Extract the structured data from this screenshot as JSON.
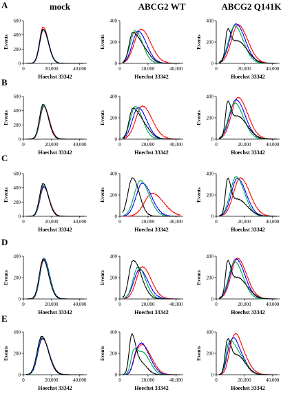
{
  "figure": {
    "column_titles": [
      "mock",
      "ABCG2 WT",
      "ABCG2 Q141K"
    ],
    "row_letters": [
      "A",
      "B",
      "C",
      "D",
      "E"
    ]
  },
  "series_colors": [
    "#000000",
    "#00a650",
    "#0000ff",
    "#ff0000"
  ],
  "chart_data": [
    {
      "panel": "A-mock",
      "type": "line",
      "xlabel": "Hoechst 33342",
      "ylabel": "Events",
      "xlim": [
        0,
        45000
      ],
      "ylim": [
        0,
        600
      ],
      "xticks": [
        0,
        20000,
        40000
      ],
      "xtick_labels": [
        "0",
        "20,000",
        "40,000"
      ],
      "yticks": [
        0,
        200,
        400,
        600
      ],
      "ytick_labels": [
        "0",
        "200",
        "400",
        "600"
      ],
      "series": [
        {
          "color": "#000000",
          "peaks": [
            [
              14000,
              480,
              3000
            ]
          ]
        },
        {
          "color": "#00a650",
          "peaks": [
            [
              14000,
              470,
              3000
            ]
          ]
        },
        {
          "color": "#0000ff",
          "peaks": [
            [
              14200,
              475,
              3000
            ]
          ]
        },
        {
          "color": "#ff0000",
          "peaks": [
            [
              14000,
              510,
              3000
            ]
          ]
        }
      ]
    },
    {
      "panel": "A-WT",
      "type": "line",
      "xlabel": "Hoechst 33342",
      "ylabel": "Events",
      "xlim": [
        0,
        45000
      ],
      "ylim": [
        0,
        400
      ],
      "xticks": [
        0,
        20000,
        40000
      ],
      "xtick_labels": [
        "0",
        "20,000",
        "40,000"
      ],
      "yticks": [
        0,
        200,
        400
      ],
      "ytick_labels": [
        "0",
        "200",
        "400"
      ],
      "series": [
        {
          "color": "#000000",
          "peaks": [
            [
              9000,
              270,
              3000
            ],
            [
              16000,
              140,
              4000
            ]
          ]
        },
        {
          "color": "#00a650",
          "peaks": [
            [
              11000,
              305,
              4200
            ]
          ]
        },
        {
          "color": "#0000ff",
          "peaks": [
            [
              13000,
              300,
              4800
            ]
          ]
        },
        {
          "color": "#ff0000",
          "peaks": [
            [
              15000,
              320,
              5500
            ]
          ]
        }
      ]
    },
    {
      "panel": "A-Q141K",
      "type": "line",
      "xlabel": "Hoechst 33342",
      "ylabel": "Events",
      "xlim": [
        0,
        45000
      ],
      "ylim": [
        0,
        400
      ],
      "xticks": [
        0,
        20000,
        40000
      ],
      "xtick_labels": [
        "0",
        "20,000",
        "40,000"
      ],
      "yticks": [
        0,
        200,
        400
      ],
      "ytick_labels": [
        "0",
        "200",
        "400"
      ],
      "series": [
        {
          "color": "#000000",
          "peaks": [
            [
              8000,
              250,
              1800
            ],
            [
              15000,
              210,
              5500
            ]
          ]
        },
        {
          "color": "#00a650",
          "peaks": [
            [
              13000,
              350,
              5000
            ]
          ]
        },
        {
          "color": "#0000ff",
          "peaks": [
            [
              14000,
              370,
              5200
            ]
          ]
        },
        {
          "color": "#ff0000",
          "peaks": [
            [
              15500,
              360,
              5500
            ]
          ]
        }
      ]
    },
    {
      "panel": "B-mock",
      "type": "line",
      "xlabel": "Hoechst 33342",
      "ylabel": "Events",
      "xlim": [
        0,
        45000
      ],
      "ylim": [
        0,
        600
      ],
      "xticks": [
        0,
        20000,
        40000
      ],
      "xtick_labels": [
        "0",
        "20,000",
        "40,000"
      ],
      "yticks": [
        0,
        200,
        400,
        600
      ],
      "ytick_labels": [
        "0",
        "200",
        "400",
        "600"
      ],
      "series": [
        {
          "color": "#000000",
          "peaks": [
            [
              14000,
              490,
              3000
            ]
          ]
        },
        {
          "color": "#00a650",
          "peaks": [
            [
              14200,
              470,
              3000
            ]
          ]
        },
        {
          "color": "#0000ff",
          "peaks": [
            [
              14300,
              465,
              3000
            ]
          ]
        },
        {
          "color": "#ff0000",
          "peaks": [
            [
              14500,
              460,
              3100
            ]
          ]
        }
      ]
    },
    {
      "panel": "B-WT",
      "type": "line",
      "xlabel": "Hoechst 33342",
      "ylabel": "Events",
      "xlim": [
        0,
        45000
      ],
      "ylim": [
        0,
        400
      ],
      "xticks": [
        0,
        20000,
        40000
      ],
      "xtick_labels": [
        "0",
        "20,000",
        "40,000"
      ],
      "yticks": [
        0,
        200,
        400
      ],
      "ytick_labels": [
        "0",
        "200",
        "400"
      ],
      "series": [
        {
          "color": "#000000",
          "peaks": [
            [
              9000,
              270,
              3000
            ],
            [
              16000,
              140,
              4000
            ]
          ]
        },
        {
          "color": "#00a650",
          "peaks": [
            [
              11000,
              305,
              4200
            ]
          ]
        },
        {
          "color": "#0000ff",
          "peaks": [
            [
              13000,
              295,
              4800
            ]
          ]
        },
        {
          "color": "#ff0000",
          "peaks": [
            [
              16000,
              310,
              5500
            ]
          ]
        }
      ]
    },
    {
      "panel": "B-Q141K",
      "type": "line",
      "xlabel": "Hoechst 33342",
      "ylabel": "Events",
      "xlim": [
        0,
        45000
      ],
      "ylim": [
        0,
        400
      ],
      "xticks": [
        0,
        20000,
        40000
      ],
      "xtick_labels": [
        "0",
        "20,000",
        "40,000"
      ],
      "yticks": [
        0,
        200,
        400
      ],
      "ytick_labels": [
        "0",
        "200",
        "400"
      ],
      "series": [
        {
          "color": "#000000",
          "peaks": [
            [
              8000,
              280,
              1800
            ],
            [
              15000,
              215,
              5500
            ]
          ]
        },
        {
          "color": "#00a650",
          "peaks": [
            [
              13000,
              340,
              5000
            ]
          ]
        },
        {
          "color": "#0000ff",
          "peaks": [
            [
              14000,
              370,
              5200
            ]
          ]
        },
        {
          "color": "#ff0000",
          "peaks": [
            [
              15500,
              390,
              5500
            ]
          ]
        }
      ]
    },
    {
      "panel": "C-mock",
      "type": "line",
      "xlabel": "Hoechst 33342",
      "ylabel": "Events",
      "xlim": [
        0,
        45000
      ],
      "ylim": [
        0,
        600
      ],
      "xticks": [
        0,
        20000,
        40000
      ],
      "xtick_labels": [
        "0",
        "20,000",
        "40,000"
      ],
      "yticks": [
        0,
        200,
        400,
        600
      ],
      "ytick_labels": [
        "0",
        "200",
        "400",
        "600"
      ],
      "series": [
        {
          "color": "#000000",
          "peaks": [
            [
              14000,
              460,
              3000
            ]
          ]
        },
        {
          "color": "#00a650",
          "peaks": [
            [
              14200,
              440,
              3000
            ]
          ]
        },
        {
          "color": "#0000ff",
          "peaks": [
            [
              14300,
              420,
              3000
            ]
          ]
        },
        {
          "color": "#ff0000",
          "peaks": [
            [
              14500,
              410,
              3100
            ]
          ]
        }
      ]
    },
    {
      "panel": "C-WT",
      "type": "line",
      "xlabel": "Hoechst 33342",
      "ylabel": "Events",
      "xlim": [
        0,
        45000
      ],
      "ylim": [
        0,
        400
      ],
      "xticks": [
        0,
        20000,
        40000
      ],
      "xtick_labels": [
        "0",
        "20,000",
        "40,000"
      ],
      "yticks": [
        0,
        200,
        400
      ],
      "ytick_labels": [
        "0",
        "200",
        "400"
      ],
      "series": [
        {
          "color": "#000000",
          "peaks": [
            [
              9000,
              360,
              3800
            ]
          ]
        },
        {
          "color": "#00a650",
          "peaks": [
            [
              14500,
              335,
              5000
            ]
          ]
        },
        {
          "color": "#0000ff",
          "peaks": [
            [
              16000,
              310,
              5200
            ]
          ]
        },
        {
          "color": "#ff0000",
          "peaks": [
            [
              23000,
              215,
              6500
            ]
          ]
        }
      ]
    },
    {
      "panel": "C-Q141K",
      "type": "line",
      "xlabel": "Hoechst 33342",
      "ylabel": "Events",
      "xlim": [
        0,
        45000
      ],
      "ylim": [
        0,
        400
      ],
      "xticks": [
        0,
        20000,
        40000
      ],
      "xtick_labels": [
        "0",
        "20,000",
        "40,000"
      ],
      "yticks": [
        0,
        200,
        400
      ],
      "ytick_labels": [
        "0",
        "200",
        "400"
      ],
      "series": [
        {
          "color": "#000000",
          "peaks": [
            [
              8000,
              300,
              1800
            ],
            [
              15000,
              160,
              5500
            ]
          ]
        },
        {
          "color": "#00a650",
          "peaks": [
            [
              14000,
              370,
              4800
            ]
          ]
        },
        {
          "color": "#0000ff",
          "peaks": [
            [
              15000,
              355,
              5000
            ]
          ]
        },
        {
          "color": "#ff0000",
          "peaks": [
            [
              17000,
              360,
              5500
            ]
          ]
        }
      ]
    },
    {
      "panel": "D-mock",
      "type": "line",
      "xlabel": "Hoechst 33342",
      "ylabel": "Events",
      "xlim": [
        0,
        45000
      ],
      "ylim": [
        0,
        400
      ],
      "xticks": [
        0,
        20000,
        40000
      ],
      "xtick_labels": [
        "0",
        "20,000",
        "40,000"
      ],
      "yticks": [
        0,
        200,
        400
      ],
      "ytick_labels": [
        "0",
        "200",
        "400"
      ],
      "series": [
        {
          "color": "#000000",
          "peaks": [
            [
              14000,
              370,
              3200
            ]
          ]
        },
        {
          "color": "#00a650",
          "peaks": [
            [
              14300,
              375,
              3200
            ]
          ]
        },
        {
          "color": "#0000ff",
          "peaks": [
            [
              14500,
              380,
              3200
            ]
          ]
        },
        {
          "color": "#ff0000",
          "peaks": [
            [
              14400,
              360,
              3200
            ]
          ]
        }
      ]
    },
    {
      "panel": "D-WT",
      "type": "line",
      "xlabel": "Hoechst 33342",
      "ylabel": "Events",
      "xlim": [
        0,
        45000
      ],
      "ylim": [
        0,
        400
      ],
      "xticks": [
        0,
        20000,
        40000
      ],
      "xtick_labels": [
        "0",
        "20,000",
        "40,000"
      ],
      "yticks": [
        0,
        200,
        400
      ],
      "ytick_labels": [
        "0",
        "200",
        "400"
      ],
      "series": [
        {
          "color": "#000000",
          "peaks": [
            [
              9000,
              340,
              3200
            ],
            [
              15000,
              120,
              3500
            ]
          ]
        },
        {
          "color": "#00a650",
          "peaks": [
            [
              13000,
              300,
              4200
            ]
          ]
        },
        {
          "color": "#0000ff",
          "peaks": [
            [
              14000,
              275,
              4800
            ]
          ]
        },
        {
          "color": "#ff0000",
          "peaks": [
            [
              16000,
              300,
              5000
            ]
          ]
        }
      ]
    },
    {
      "panel": "D-Q141K",
      "type": "line",
      "xlabel": "Hoechst 33342",
      "ylabel": "Events",
      "xlim": [
        0,
        45000
      ],
      "ylim": [
        0,
        400
      ],
      "xticks": [
        0,
        20000,
        40000
      ],
      "xtick_labels": [
        "0",
        "20,000",
        "40,000"
      ],
      "yticks": [
        0,
        200,
        400
      ],
      "ytick_labels": [
        "0",
        "200",
        "400"
      ],
      "series": [
        {
          "color": "#000000",
          "peaks": [
            [
              8000,
              290,
              1800
            ],
            [
              15000,
              200,
              5500
            ]
          ]
        },
        {
          "color": "#00a650",
          "peaks": [
            [
              13000,
              350,
              4800
            ]
          ]
        },
        {
          "color": "#0000ff",
          "peaks": [
            [
              14000,
              375,
              5000
            ]
          ]
        },
        {
          "color": "#ff0000",
          "peaks": [
            [
              15000,
              380,
              5200
            ]
          ]
        }
      ]
    },
    {
      "panel": "E-mock",
      "type": "line",
      "xlabel": "Hoechst 33342",
      "ylabel": "Events",
      "xlim": [
        0,
        45000
      ],
      "ylim": [
        0,
        400
      ],
      "xticks": [
        0,
        20000,
        40000
      ],
      "xtick_labels": [
        "0",
        "20,000",
        "40,000"
      ],
      "yticks": [
        0,
        200,
        400
      ],
      "ytick_labels": [
        "0",
        "200",
        "400"
      ],
      "series": [
        {
          "color": "#000000",
          "peaks": [
            [
              13000,
              360,
              3800
            ]
          ]
        },
        {
          "color": "#00a650",
          "peaks": [
            [
              13200,
              350,
              3800
            ]
          ]
        },
        {
          "color": "#0000ff",
          "peaks": [
            [
              13500,
              340,
              3800
            ]
          ]
        },
        {
          "color": "#ff0000",
          "peaks": [
            [
              13500,
              335,
              3900
            ]
          ]
        }
      ]
    },
    {
      "panel": "E-WT",
      "type": "line",
      "xlabel": "Hoechst 33342",
      "ylabel": "Events",
      "xlim": [
        0,
        45000
      ],
      "ylim": [
        0,
        400
      ],
      "xticks": [
        0,
        20000,
        40000
      ],
      "xtick_labels": [
        "0",
        "20,000",
        "40,000"
      ],
      "yticks": [
        0,
        200,
        400
      ],
      "ytick_labels": [
        "0",
        "200",
        "400"
      ],
      "series": [
        {
          "color": "#000000",
          "peaks": [
            [
              8500,
              370,
              2200
            ],
            [
              15000,
              110,
              3500
            ]
          ]
        },
        {
          "color": "#00a650",
          "peaks": [
            [
              10000,
              220,
              2500
            ],
            [
              17000,
              190,
              3800
            ]
          ]
        },
        {
          "color": "#0000ff",
          "peaks": [
            [
              12000,
              180,
              3000
            ],
            [
              17500,
              210,
              4200
            ]
          ]
        },
        {
          "color": "#ff0000",
          "peaks": [
            [
              12000,
              160,
              3000
            ],
            [
              18000,
              220,
              4500
            ]
          ]
        }
      ]
    },
    {
      "panel": "E-Q141K",
      "type": "line",
      "xlabel": "Hoechst 33342",
      "ylabel": "Events",
      "xlim": [
        0,
        45000
      ],
      "ylim": [
        0,
        400
      ],
      "xticks": [
        0,
        20000,
        40000
      ],
      "xtick_labels": [
        "0",
        "20,000",
        "40,000"
      ],
      "yticks": [
        0,
        200,
        400
      ],
      "ytick_labels": [
        "0",
        "200",
        "400"
      ],
      "series": [
        {
          "color": "#000000",
          "peaks": [
            [
              8000,
              300,
              2000
            ],
            [
              15000,
              180,
              4500
            ]
          ]
        },
        {
          "color": "#00a650",
          "peaks": [
            [
              9000,
              250,
              2500
            ],
            [
              15000,
              200,
              4500
            ]
          ]
        },
        {
          "color": "#0000ff",
          "peaks": [
            [
              10000,
              220,
              3000
            ],
            [
              15000,
              210,
              4500
            ]
          ]
        },
        {
          "color": "#ff0000",
          "peaks": [
            [
              11500,
              210,
              3200
            ],
            [
              16000,
              240,
              4800
            ]
          ]
        }
      ]
    }
  ]
}
